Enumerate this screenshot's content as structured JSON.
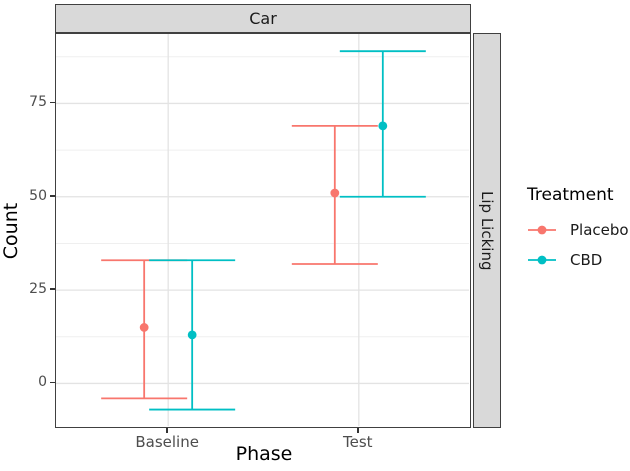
{
  "chart_data": {
    "type": "errorbar",
    "facet_col_label": "Car",
    "facet_row_label": "Lip Licking",
    "xlabel": "Phase",
    "ylabel": "Count",
    "categories": [
      "Baseline",
      "Test"
    ],
    "y_ticks": [
      0,
      25,
      50,
      75
    ],
    "y_minor_gridlines": [
      12.5,
      37.5,
      62.5,
      87.5
    ],
    "ylim": [
      -11.4,
      93.6
    ],
    "grid": true,
    "legend": {
      "title": "Treatment",
      "position": "right",
      "entries": [
        {
          "label": "Placebo",
          "color": "#F8766D"
        },
        {
          "label": "CBD",
          "color": "#00BFC4"
        }
      ]
    },
    "series": [
      {
        "name": "Placebo",
        "color": "#F8766D",
        "points": [
          {
            "category": "Baseline",
            "mean": 15,
            "lower": -4,
            "upper": 33
          },
          {
            "category": "Test",
            "mean": 51,
            "lower": 32,
            "upper": 69
          }
        ]
      },
      {
        "name": "CBD",
        "color": "#00BFC4",
        "points": [
          {
            "category": "Baseline",
            "mean": 13,
            "lower": -7,
            "upper": 33
          },
          {
            "category": "Test",
            "mean": 69,
            "lower": 50,
            "upper": 89
          }
        ]
      }
    ],
    "colors": {
      "strip_fill": "#d9d9d9",
      "border": "#404040",
      "grid_major": "#e3e3e3",
      "grid_minor": "#efefef",
      "tick_text": "#4d4d4d"
    }
  }
}
